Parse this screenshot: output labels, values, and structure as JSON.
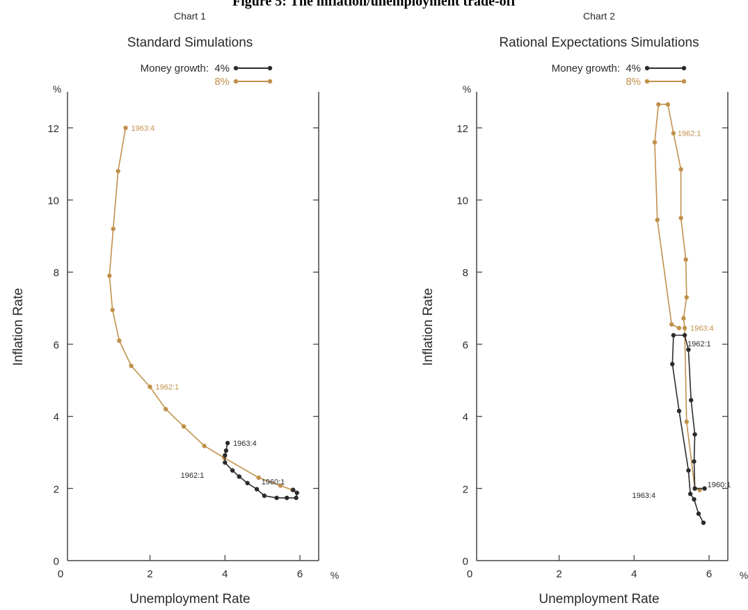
{
  "figure": {
    "title": "Figure 5: The inflation/unemployment trade-off"
  },
  "colors": {
    "series_4pct": "#2b2b2b",
    "series_8pct": "#c1904a",
    "axis": "#444444",
    "text": "#2a2a2a"
  },
  "chart_data": [
    {
      "type": "line",
      "chart_label": "Chart 1",
      "title": "Standard Simulations",
      "legend_prefix": "Money growth:",
      "legend_placement": "top",
      "xlabel": "Unemployment Rate",
      "ylabel": "Inflation Rate",
      "x_unit": "%",
      "y_unit": "%",
      "xlim": [
        -0.2,
        6.5
      ],
      "ylim": [
        0,
        13
      ],
      "x_ticks": [
        0,
        2,
        4,
        6
      ],
      "y_ticks": [
        0,
        2,
        4,
        6,
        8,
        10,
        12
      ],
      "grid": false,
      "series": [
        {
          "name": "4%",
          "color_key": "series_4pct",
          "points": [
            {
              "x": 4.07,
              "y": 3.26,
              "label": "1963:4"
            },
            {
              "x": 4.03,
              "y": 3.05
            },
            {
              "x": 4.0,
              "y": 2.92
            },
            {
              "x": 4.0,
              "y": 2.72,
              "label": "1962:1"
            },
            {
              "x": 4.2,
              "y": 2.5
            },
            {
              "x": 4.38,
              "y": 2.33
            },
            {
              "x": 4.6,
              "y": 2.15
            },
            {
              "x": 4.85,
              "y": 1.98
            },
            {
              "x": 5.05,
              "y": 1.8
            },
            {
              "x": 5.38,
              "y": 1.74
            },
            {
              "x": 5.65,
              "y": 1.74
            },
            {
              "x": 5.9,
              "y": 1.74
            },
            {
              "x": 5.92,
              "y": 1.88
            },
            {
              "x": 5.82,
              "y": 1.96,
              "label": "1960:1"
            }
          ]
        },
        {
          "name": "8%",
          "color_key": "series_8pct",
          "points": [
            {
              "x": 1.35,
              "y": 12.0,
              "label": "1963:4"
            },
            {
              "x": 1.15,
              "y": 10.8
            },
            {
              "x": 1.02,
              "y": 9.2
            },
            {
              "x": 0.92,
              "y": 7.9
            },
            {
              "x": 1.0,
              "y": 6.95
            },
            {
              "x": 1.18,
              "y": 6.1
            },
            {
              "x": 1.5,
              "y": 5.4
            },
            {
              "x": 2.0,
              "y": 4.82,
              "label": "1962:1"
            },
            {
              "x": 2.42,
              "y": 4.2
            },
            {
              "x": 2.9,
              "y": 3.72
            },
            {
              "x": 3.45,
              "y": 3.18
            },
            {
              "x": 3.98,
              "y": 2.85
            },
            {
              "x": 4.9,
              "y": 2.3
            },
            {
              "x": 5.48,
              "y": 2.08
            },
            {
              "x": 5.8,
              "y": 1.96
            }
          ]
        }
      ]
    },
    {
      "type": "line",
      "chart_label": "Chart 2",
      "title": "Rational Expectations Simulations",
      "legend_prefix": "Money growth:",
      "legend_placement": "top",
      "xlabel": "Unemployment Rate",
      "ylabel": "Inflation Rate",
      "x_unit": "%",
      "y_unit": "%",
      "xlim": [
        -0.2,
        6.5
      ],
      "ylim": [
        0,
        13
      ],
      "x_ticks": [
        0,
        2,
        4,
        6
      ],
      "y_ticks": [
        0,
        2,
        4,
        6,
        8,
        10,
        12
      ],
      "grid": false,
      "series": [
        {
          "name": "4%",
          "color_key": "series_4pct",
          "points": [
            {
              "x": 5.85,
              "y": 1.05
            },
            {
              "x": 5.72,
              "y": 1.3
            },
            {
              "x": 5.6,
              "y": 1.7
            },
            {
              "x": 5.5,
              "y": 1.85,
              "label": "1963:4"
            },
            {
              "x": 5.45,
              "y": 2.5
            },
            {
              "x": 5.2,
              "y": 4.15
            },
            {
              "x": 5.02,
              "y": 5.45
            },
            {
              "x": 5.05,
              "y": 6.25
            },
            {
              "x": 5.35,
              "y": 6.25,
              "label": "1962:1"
            },
            {
              "x": 5.45,
              "y": 5.85
            },
            {
              "x": 5.52,
              "y": 4.45
            },
            {
              "x": 5.62,
              "y": 3.5
            },
            {
              "x": 5.6,
              "y": 2.75
            },
            {
              "x": 5.62,
              "y": 2.0
            },
            {
              "x": 5.88,
              "y": 2.0,
              "label": "1960:1"
            }
          ]
        },
        {
          "name": "8%",
          "color_key": "series_8pct",
          "points": [
            {
              "x": 5.75,
              "y": 1.96
            },
            {
              "x": 5.62,
              "y": 2.0
            },
            {
              "x": 5.4,
              "y": 3.85
            },
            {
              "x": 5.35,
              "y": 6.45,
              "label": "1963:4"
            },
            {
              "x": 5.32,
              "y": 6.72
            },
            {
              "x": 5.4,
              "y": 7.3
            },
            {
              "x": 5.38,
              "y": 8.35
            },
            {
              "x": 5.25,
              "y": 9.5
            },
            {
              "x": 5.25,
              "y": 10.85
            },
            {
              "x": 5.05,
              "y": 11.85,
              "label": "1962:1"
            },
            {
              "x": 4.9,
              "y": 12.65
            },
            {
              "x": 4.65,
              "y": 12.65
            },
            {
              "x": 4.55,
              "y": 11.6
            },
            {
              "x": 4.62,
              "y": 9.45
            },
            {
              "x": 5.0,
              "y": 6.55
            },
            {
              "x": 5.2,
              "y": 6.45
            }
          ]
        }
      ]
    }
  ]
}
